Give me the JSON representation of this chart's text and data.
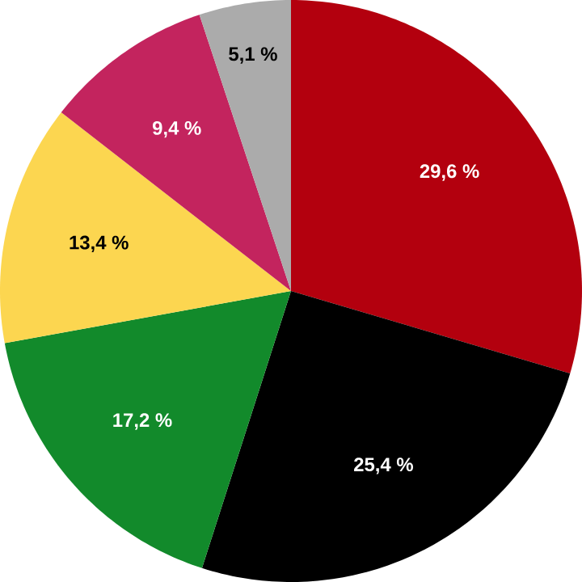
{
  "chart_data": {
    "type": "pie",
    "categories": [
      null,
      null,
      null,
      null,
      null,
      null
    ],
    "values": [
      29.6,
      25.4,
      17.2,
      13.4,
      9.4,
      5.1
    ],
    "colors": [
      "#b3000e",
      "#000000",
      "#128a2b",
      "#fcd650",
      "#c3245e",
      "#ababab"
    ],
    "value_labels": [
      "29,6 %",
      "25,4 %",
      "17,2 %",
      "13,4 %",
      "9,4 %",
      "5,1 %"
    ]
  }
}
